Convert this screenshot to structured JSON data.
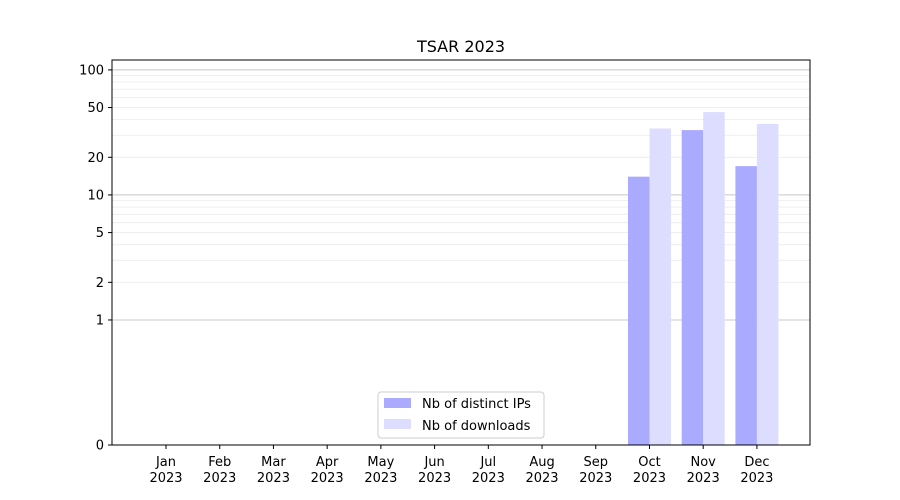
{
  "chart_data": {
    "type": "bar",
    "title": "TSAR 2023",
    "xlabel": "",
    "ylabel": "",
    "y_scale": "symlog",
    "ylim": [
      0,
      120
    ],
    "y_ticks": [
      0,
      1,
      2,
      5,
      10,
      20,
      50,
      100
    ],
    "y_tick_labels": [
      "0",
      "1",
      "2",
      "5",
      "10",
      "20",
      "50",
      "100"
    ],
    "grid": "y-major-and-minor",
    "legend_position": "lower-center",
    "categories": [
      {
        "month": "Jan",
        "year": "2023"
      },
      {
        "month": "Feb",
        "year": "2023"
      },
      {
        "month": "Mar",
        "year": "2023"
      },
      {
        "month": "Apr",
        "year": "2023"
      },
      {
        "month": "May",
        "year": "2023"
      },
      {
        "month": "Jun",
        "year": "2023"
      },
      {
        "month": "Jul",
        "year": "2023"
      },
      {
        "month": "Aug",
        "year": "2023"
      },
      {
        "month": "Sep",
        "year": "2023"
      },
      {
        "month": "Oct",
        "year": "2023"
      },
      {
        "month": "Nov",
        "year": "2023"
      },
      {
        "month": "Dec",
        "year": "2023"
      }
    ],
    "series": [
      {
        "name": "Nb of distinct IPs",
        "color": "#aaaaff",
        "values": [
          0,
          0,
          0,
          0,
          0,
          0,
          0,
          0,
          0,
          14,
          33,
          17
        ]
      },
      {
        "name": "Nb of downloads",
        "color": "#ddddff",
        "values": [
          0,
          0,
          0,
          0,
          0,
          0,
          0,
          0,
          0,
          34,
          46,
          37
        ]
      }
    ]
  }
}
